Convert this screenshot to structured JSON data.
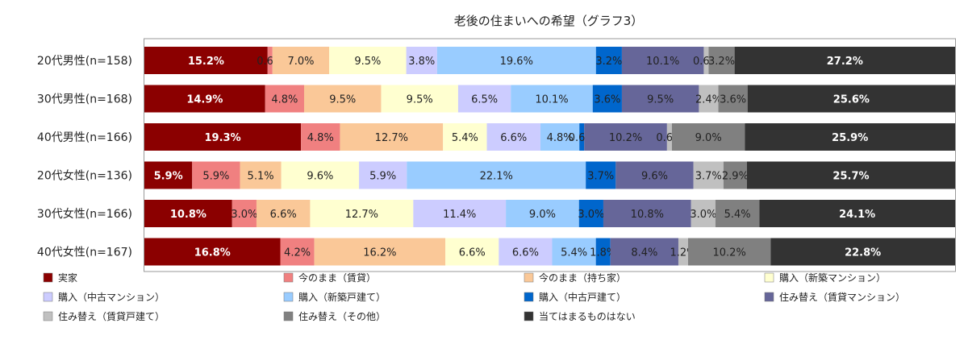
{
  "chart_data": {
    "type": "bar",
    "orientation": "horizontal",
    "stacked": "percent",
    "title": "老後の住まいへの希望（グラフ3）",
    "categories": [
      "20代男性(n=158)",
      "30代男性(n=168)",
      "40代男性(n=166)",
      "20代女性(n=136)",
      "30代女性(n=166)",
      "40代女性(n=167)"
    ],
    "xlim": [
      0,
      100
    ],
    "grid": false,
    "legend_position": "bottom",
    "series": [
      {
        "name": "実家",
        "color": "#8b0000",
        "text_color": "#ffffff",
        "values": [
          15.2,
          14.9,
          19.3,
          5.9,
          10.8,
          16.8
        ],
        "labels": [
          "15.2%",
          "14.9%",
          "19.3%",
          "5.9%",
          "10.8%",
          "16.8%"
        ]
      },
      {
        "name": "今のまま（賃貸）",
        "color": "#f08080",
        "text_color": "#222222",
        "values": [
          0.6,
          4.8,
          4.8,
          5.9,
          3.0,
          4.2
        ],
        "labels": [
          "0.6%",
          "4.8%",
          "4.8%",
          "5.9%",
          "3.0%",
          "4.2%"
        ]
      },
      {
        "name": "今のまま（持ち家）",
        "color": "#fac898",
        "text_color": "#222222",
        "values": [
          7.0,
          9.5,
          12.7,
          5.1,
          6.6,
          16.2
        ],
        "labels": [
          "7.0%",
          "9.5%",
          "12.7%",
          "5.1%",
          "6.6%",
          "16.2%"
        ]
      },
      {
        "name": "購入（新築マンション）",
        "color": "#ffffd0",
        "text_color": "#222222",
        "values": [
          9.5,
          9.5,
          5.4,
          9.6,
          12.7,
          6.6
        ],
        "labels": [
          "9.5%",
          "9.5%",
          "5.4%",
          "9.6%",
          "12.7%",
          "6.6%"
        ]
      },
      {
        "name": "購入（中古マンション）",
        "color": "#ccccff",
        "text_color": "#222222",
        "values": [
          3.8,
          6.5,
          6.6,
          5.9,
          11.4,
          6.6
        ],
        "labels": [
          "3.8%",
          "6.5%",
          "6.6%",
          "5.9%",
          "11.4%",
          "6.6%"
        ]
      },
      {
        "name": "購入（新築戸建て）",
        "color": "#99ccff",
        "text_color": "#222222",
        "values": [
          19.6,
          10.1,
          4.8,
          22.1,
          9.0,
          5.4
        ],
        "labels": [
          "19.6%",
          "10.1%",
          "4.8%",
          "22.1%",
          "9.0%",
          "5.4%"
        ]
      },
      {
        "name": "購入（中古戸建て）",
        "color": "#0066cc",
        "text_color": "#222222",
        "values": [
          3.2,
          3.6,
          0.6,
          3.7,
          3.0,
          1.8
        ],
        "labels": [
          "3.2%",
          "3.6%",
          "0.6%",
          "3.7%",
          "3.0%",
          "1.8%"
        ]
      },
      {
        "name": "住み替え（賃貸マンション）",
        "color": "#666699",
        "text_color": "#222222",
        "values": [
          10.1,
          9.5,
          10.2,
          9.6,
          10.8,
          8.4
        ],
        "labels": [
          "10.1%",
          "9.5%",
          "10.2%",
          "9.6%",
          "10.8%",
          "8.4%"
        ]
      },
      {
        "name": "住み替え（賃貸戸建て）",
        "color": "#c0c0c0",
        "text_color": "#222222",
        "values": [
          0.6,
          2.4,
          0.6,
          3.7,
          3.0,
          1.2
        ],
        "labels": [
          "0.6%",
          "2.4%",
          "0.6%",
          "3.7%",
          "3.0%",
          "1.2%"
        ]
      },
      {
        "name": "住み替え（その他）",
        "color": "#808080",
        "text_color": "#222222",
        "values": [
          3.2,
          3.6,
          9.0,
          2.9,
          5.4,
          10.2
        ],
        "labels": [
          "3.2%",
          "3.6%",
          "9.0%",
          "2.9%",
          "5.4%",
          "10.2%"
        ]
      },
      {
        "name": "当てはまるものはない",
        "color": "#333333",
        "text_color": "#ffffff",
        "values": [
          27.2,
          25.6,
          25.9,
          25.7,
          24.1,
          22.8
        ],
        "labels": [
          "27.2%",
          "25.6%",
          "25.9%",
          "25.7%",
          "24.1%",
          "22.8%"
        ]
      }
    ]
  }
}
